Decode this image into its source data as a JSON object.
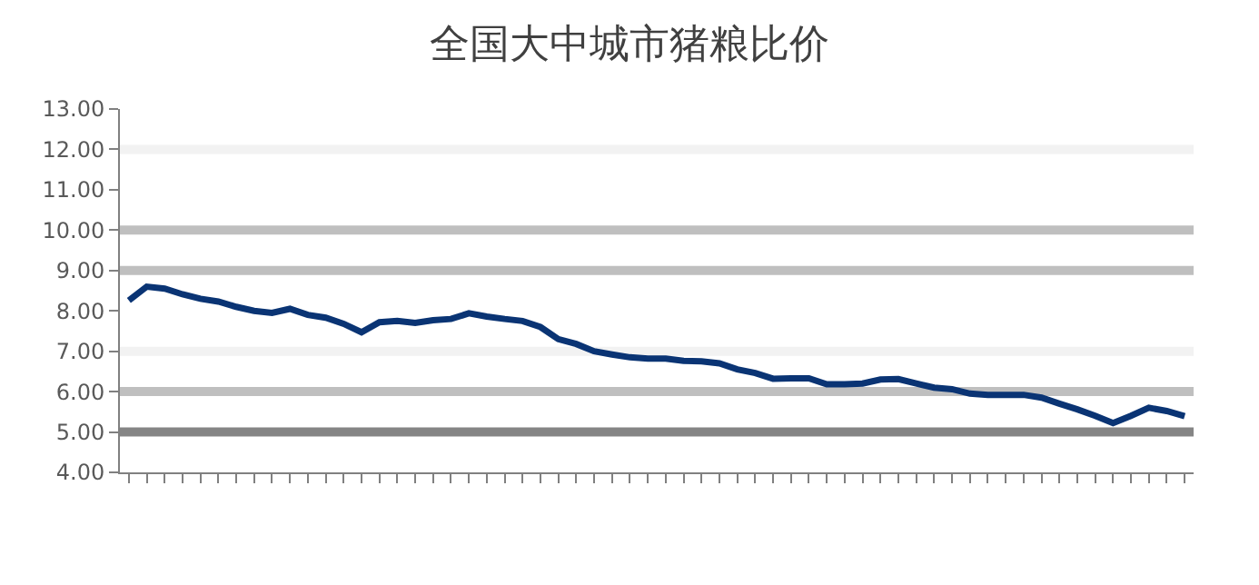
{
  "chart_data": {
    "type": "line",
    "title": "全国大中城市猪粮比价",
    "categories": [
      null,
      null,
      null,
      null,
      null,
      null,
      null,
      null,
      null,
      null,
      null,
      null,
      null,
      null,
      null,
      null,
      null,
      null,
      null,
      null,
      null,
      null,
      null,
      null,
      null,
      null,
      null,
      null,
      null,
      null,
      null,
      null,
      null,
      null,
      null,
      null,
      null,
      null,
      null,
      null,
      null,
      null,
      null,
      null,
      null,
      null,
      null,
      null,
      null,
      null,
      null,
      null,
      null,
      null,
      null,
      null,
      null,
      null,
      null,
      null
    ],
    "series": [
      {
        "color": "#0a3474",
        "values": [
          8.26,
          8.6,
          8.55,
          8.41,
          8.3,
          8.23,
          8.1,
          8.0,
          7.95,
          8.05,
          7.9,
          7.83,
          7.68,
          7.47,
          7.72,
          7.75,
          7.7,
          7.77,
          7.8,
          7.94,
          7.86,
          7.8,
          7.75,
          7.6,
          7.3,
          7.18,
          7.0,
          6.92,
          6.85,
          6.82,
          6.82,
          6.76,
          6.75,
          6.7,
          6.55,
          6.46,
          6.32,
          6.33,
          6.33,
          6.18,
          6.18,
          6.2,
          6.3,
          6.31,
          6.2,
          6.1,
          6.06,
          5.95,
          5.92,
          5.92,
          5.92,
          5.85,
          5.7,
          5.56,
          5.4,
          5.22,
          5.4,
          5.6,
          5.52,
          5.39
        ]
      }
    ],
    "ylim": [
      4,
      13
    ],
    "yticks": [
      {
        "value": 4,
        "label": "4.00"
      },
      {
        "value": 5,
        "label": "5.00"
      },
      {
        "value": 6,
        "label": "6.00"
      },
      {
        "value": 7,
        "label": "7.00"
      },
      {
        "value": 8,
        "label": "8.00"
      },
      {
        "value": 9,
        "label": "9.00"
      },
      {
        "value": 10,
        "label": "10.00"
      },
      {
        "value": 11,
        "label": "11.00"
      },
      {
        "value": 12,
        "label": "12.00"
      },
      {
        "value": 13,
        "label": "13.00"
      }
    ],
    "ref_lines": [
      {
        "axis": "y",
        "value": 5,
        "color": "#858585"
      },
      {
        "axis": "y",
        "value": 6,
        "color": "#bfbfbf"
      },
      {
        "axis": "y",
        "value": 7,
        "color": "#f2f2f2"
      },
      {
        "axis": "y",
        "value": 9,
        "color": "#bfbfbf"
      },
      {
        "axis": "y",
        "value": 10,
        "color": "#bfbfbf"
      },
      {
        "axis": "y",
        "value": 12,
        "color": "#f2f2f2"
      }
    ],
    "grid": false,
    "marker": "none",
    "line_style": "solid",
    "tick_labels": "y"
  }
}
